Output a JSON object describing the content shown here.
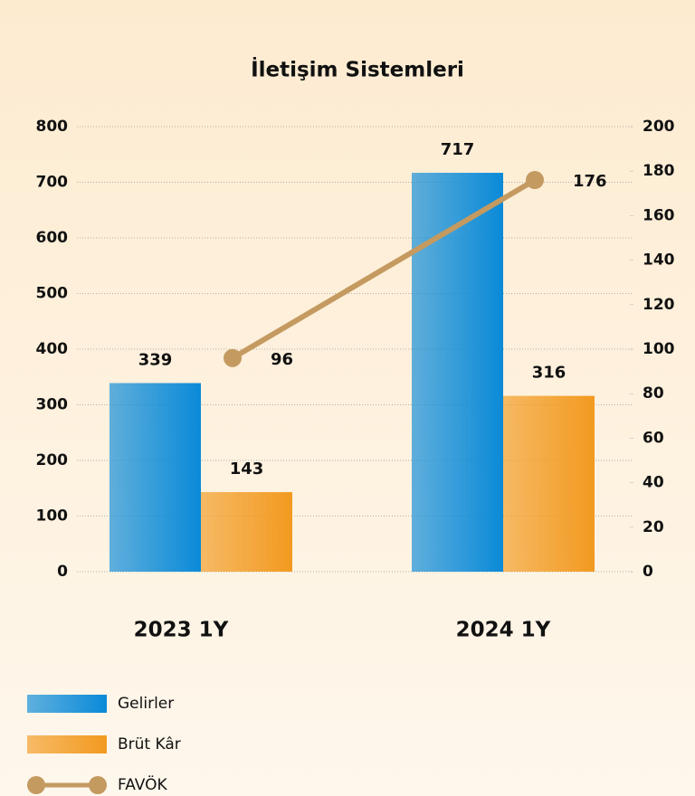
{
  "chart_data": {
    "type": "bar_line",
    "title": "İletişim Sistemleri",
    "categories": [
      "2023 1Y",
      "2024 1Y"
    ],
    "series": [
      {
        "name": "Gelirler",
        "type": "bar",
        "color": "#0a8ad8",
        "values": [
          339,
          717
        ]
      },
      {
        "name": "Brüt Kâr",
        "type": "bar",
        "color": "#f29a20",
        "values": [
          143,
          316
        ]
      },
      {
        "name": "FAVÖK",
        "type": "line",
        "axis": "y2",
        "color": "#c49a60",
        "values": [
          96,
          176
        ]
      }
    ],
    "ylim": [
      0,
      800
    ],
    "yticks": [
      0,
      100,
      200,
      300,
      400,
      500,
      600,
      700,
      800
    ],
    "y2lim": [
      0,
      200
    ],
    "y2ticks": [
      0,
      20,
      40,
      60,
      80,
      100,
      120,
      140,
      160,
      180,
      200
    ],
    "grid": true,
    "legend": "bottom-left"
  }
}
